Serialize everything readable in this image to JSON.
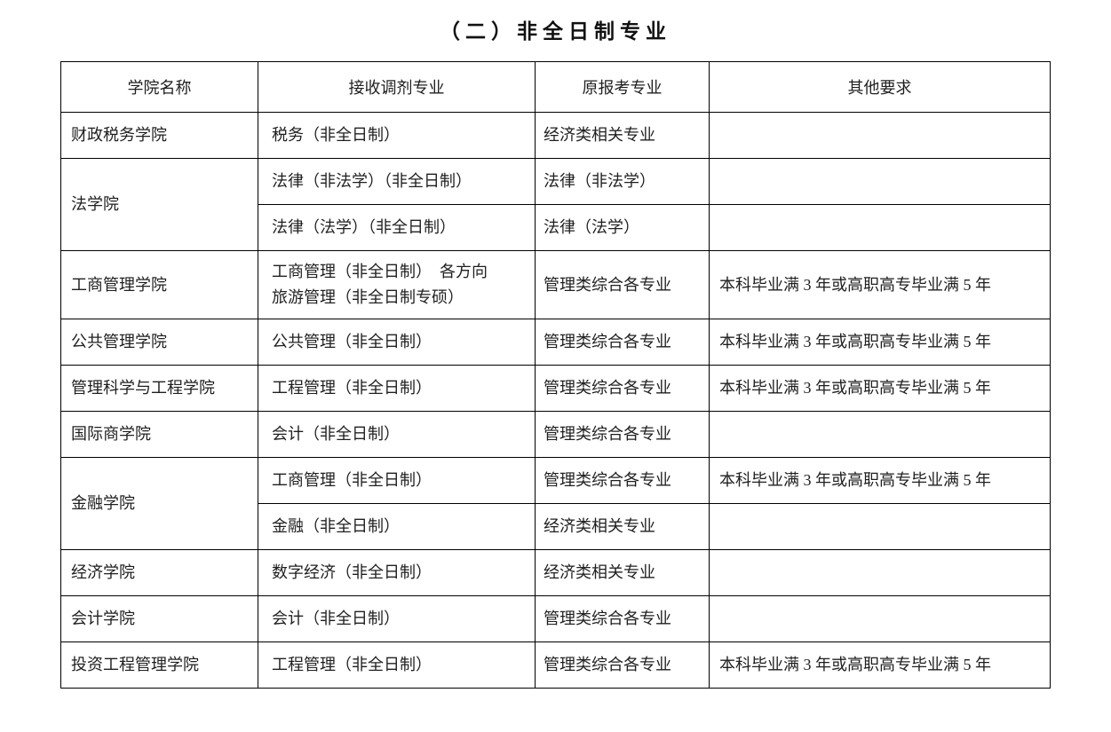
{
  "page": {
    "title": "（二）非全日制专业"
  },
  "table": {
    "headers": [
      "学院名称",
      "接收调剂专业",
      "原报考专业",
      "其他要求"
    ],
    "rows": [
      {
        "college": "财政税务学院",
        "rowspan": 1,
        "major": "税务（非全日制）",
        "original": "经济类相关专业",
        "other": ""
      },
      {
        "college": "法学院",
        "rowspan": 2,
        "major": "法律（非法学）（非全日制）",
        "original": "法律（非法学）",
        "other": ""
      },
      {
        "college": null,
        "major": "法律（法学）（非全日制）",
        "original": "法律（法学）",
        "other": ""
      },
      {
        "college": "工商管理学院",
        "rowspan": 1,
        "major": "工商管理（非全日制）　各方向\n旅游管理（非全日制专硕）",
        "original": "管理类综合各专业",
        "other": "本科毕业满 3 年或高职高专毕业满 5 年"
      },
      {
        "college": "公共管理学院",
        "rowspan": 1,
        "major": "公共管理（非全日制）",
        "original": "管理类综合各专业",
        "other": "本科毕业满 3 年或高职高专毕业满 5 年"
      },
      {
        "college": "管理科学与工程学院",
        "rowspan": 1,
        "major": "工程管理（非全日制）",
        "original": "管理类综合各专业",
        "other": "本科毕业满 3 年或高职高专毕业满 5 年"
      },
      {
        "college": "国际商学院",
        "rowspan": 1,
        "major": "会计（非全日制）",
        "original": "管理类综合各专业",
        "other": ""
      },
      {
        "college": "金融学院",
        "rowspan": 2,
        "major": "工商管理（非全日制）",
        "original": "管理类综合各专业",
        "other": "本科毕业满 3 年或高职高专毕业满 5 年"
      },
      {
        "college": null,
        "major": "金融（非全日制）",
        "original": "经济类相关专业",
        "other": ""
      },
      {
        "college": "经济学院",
        "rowspan": 1,
        "major": "数字经济（非全日制）",
        "original": "经济类相关专业",
        "other": ""
      },
      {
        "college": "会计学院",
        "rowspan": 1,
        "major": "会计（非全日制）",
        "original": "管理类综合各专业",
        "other": ""
      },
      {
        "college": "投资工程管理学院",
        "rowspan": 1,
        "major": "工程管理（非全日制）",
        "original": "管理类综合各专业",
        "other": "本科毕业满 3 年或高职高专毕业满 5 年"
      }
    ]
  },
  "colors": {
    "text": "#1f1f1f",
    "border": "#000000",
    "background": "#ffffff"
  }
}
